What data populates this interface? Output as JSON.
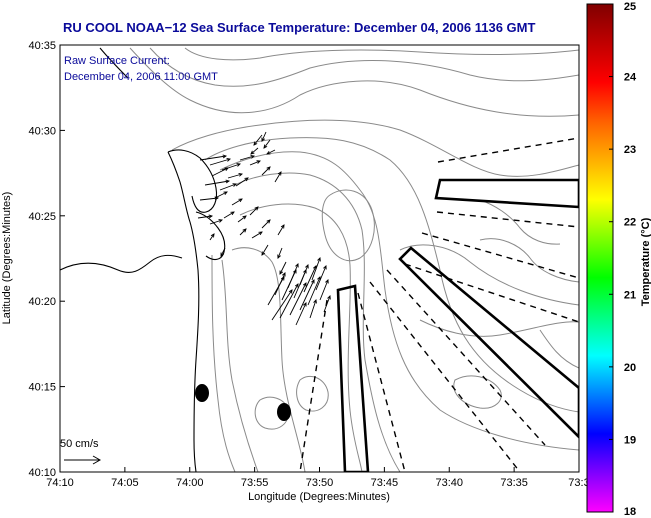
{
  "header": {
    "title": "RU COOL  NOAA−12  Sea Surface Temperature:  December 04, 2006 1136 GMT",
    "title_color": "#0a0a9a"
  },
  "annotation": {
    "line1": "Raw Surface Current:",
    "line2": "December 04, 2006 11:00 GMT",
    "color": "#0a0a9a"
  },
  "scale": {
    "label": "50 cm/s"
  },
  "axes": {
    "xlabel": "Longitude (Degrees:Minutes)",
    "ylabel": "Latitude (Degrees:Minutes)",
    "xticks": [
      "74:10",
      "74:05",
      "74:00",
      "73:55",
      "73:50",
      "73:45",
      "73:40",
      "73:35",
      "73:3"
    ],
    "yticks": [
      "40:35",
      "40:30",
      "40:25",
      "40:20",
      "40:15",
      "40:10"
    ]
  },
  "colorbar": {
    "label": "Temperature (°C)",
    "ticks": [
      "25",
      "24",
      "23",
      "22",
      "21",
      "20",
      "19",
      "18"
    ],
    "range": [
      18,
      25
    ],
    "colors": [
      "#ff00ff",
      "#8000ff",
      "#0000ff",
      "#0080ff",
      "#00ffff",
      "#00ff80",
      "#00ff00",
      "#80ff00",
      "#ffff00",
      "#ffb000",
      "#ff6000",
      "#ff0000",
      "#c00000",
      "#800000"
    ]
  },
  "map_markers": [
    "black-ellipse-marker",
    "black-ellipse-marker"
  ]
}
